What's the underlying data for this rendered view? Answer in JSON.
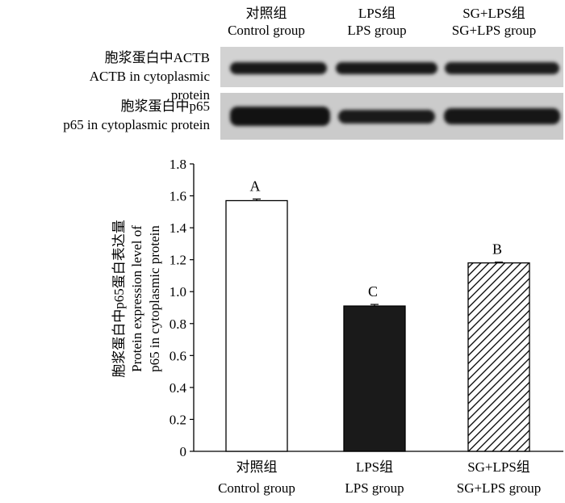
{
  "blot": {
    "columns": [
      {
        "cn": "对照组",
        "en": "Control group"
      },
      {
        "cn": "LPS组",
        "en": "LPS group"
      },
      {
        "cn": "SG+LPS组",
        "en": "SG+LPS group"
      }
    ],
    "rows": [
      {
        "cn": "胞浆蛋白中ACTB",
        "en": "ACTB in cytoplasmic protein"
      },
      {
        "cn": "胞浆蛋白中p65",
        "en": "p65 in cytoplasmic protein"
      }
    ]
  },
  "chart_data": {
    "type": "bar",
    "categories": [
      {
        "cn": "对照组",
        "en": "Control group"
      },
      {
        "cn": "LPS组",
        "en": "LPS group"
      },
      {
        "cn": "SG+LPS组",
        "en": "SG+LPS group"
      }
    ],
    "values": [
      1.57,
      0.91,
      1.18
    ],
    "errors": [
      0.01,
      0.01,
      0.005
    ],
    "significance_letters": [
      "A",
      "C",
      "B"
    ],
    "bar_fills": [
      "white",
      "black",
      "hatched"
    ],
    "ylabel_cn": "胞浆蛋白中p65蛋白表达量",
    "ylabel_en": [
      "Protein expression level of",
      "p65 in cytoplasmic protein"
    ],
    "ylim": [
      0,
      1.8
    ],
    "yticks": [
      "0",
      "0.2",
      "0.4",
      "0.6",
      "0.8",
      "1.0",
      "1.2",
      "1.4",
      "1.6",
      "1.8"
    ],
    "grid": false,
    "colors": {
      "axis": "#000000",
      "bar_dark": "#1a1a1a",
      "blot_bg": "#cfcfcf",
      "band": "#141414"
    }
  }
}
